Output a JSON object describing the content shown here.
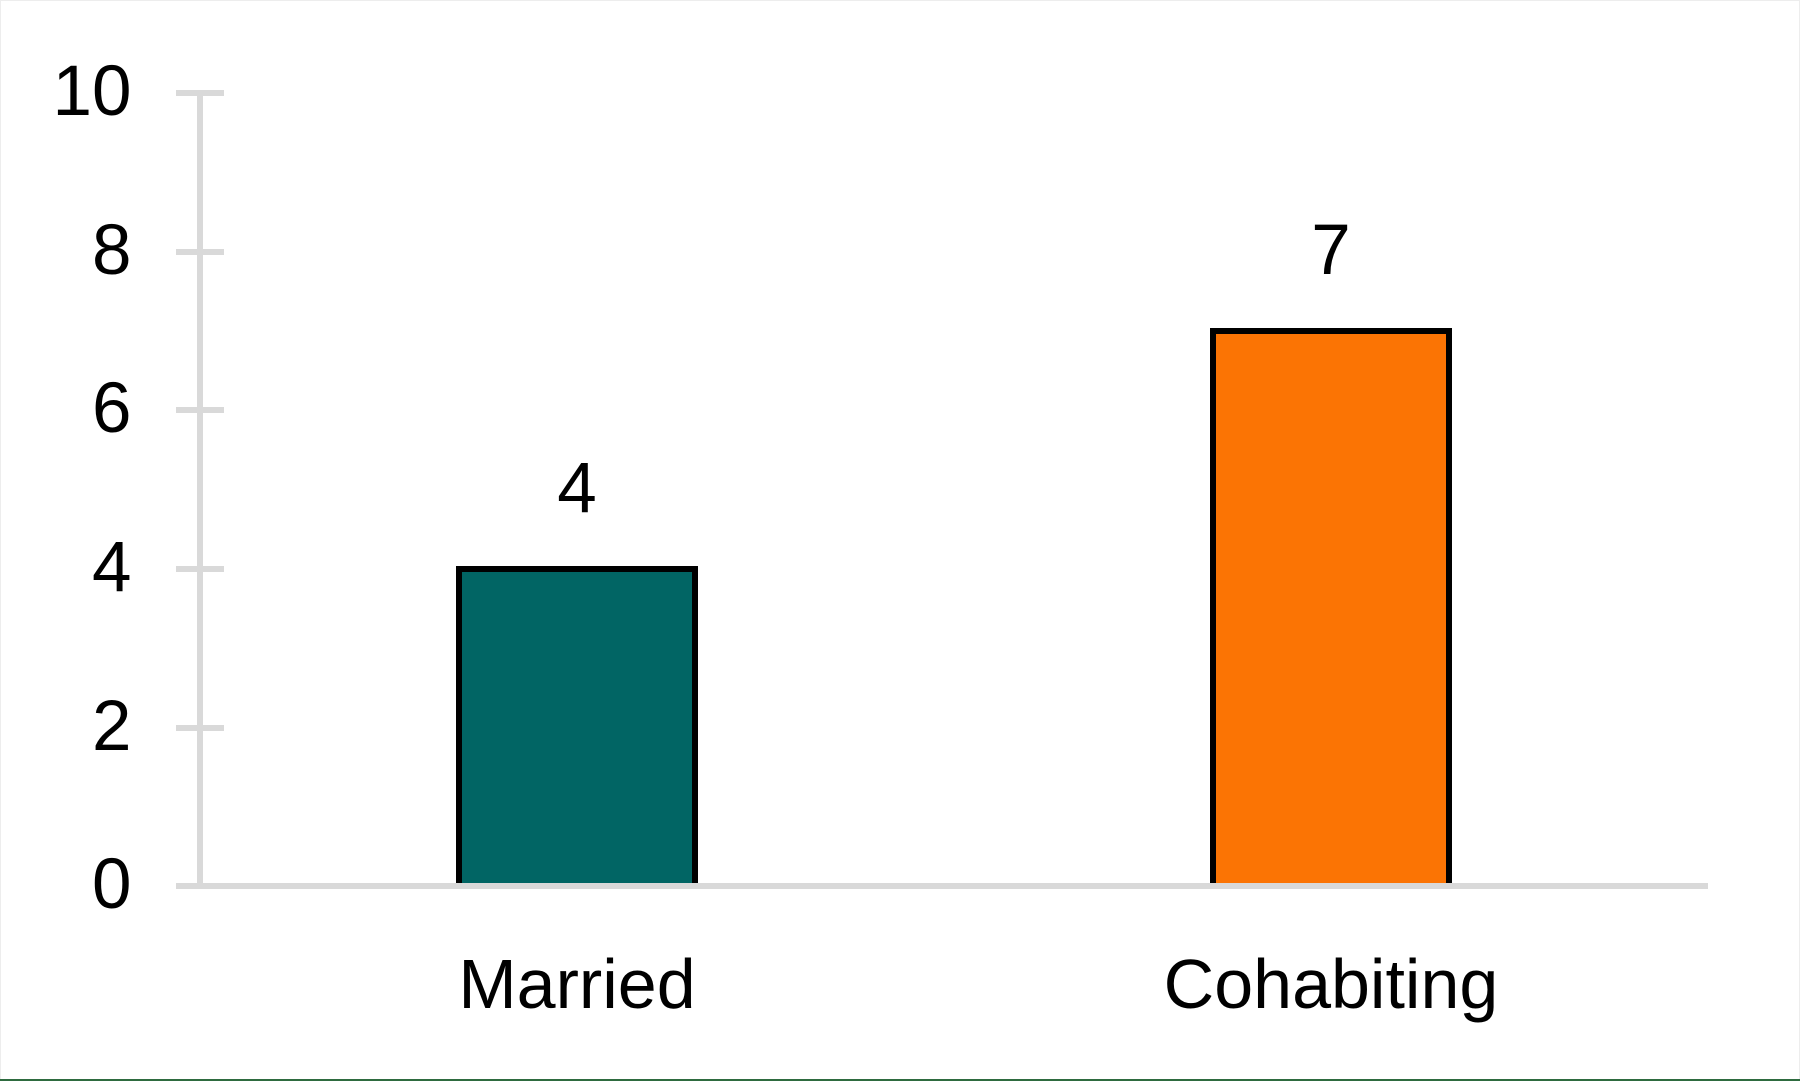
{
  "chart_data": {
    "type": "bar",
    "title": "",
    "xlabel": "",
    "ylabel": "",
    "categories": [
      "Married",
      "Cohabiting"
    ],
    "values": [
      4,
      7
    ],
    "data_labels": [
      "4",
      "7"
    ],
    "bar_colors": [
      "#016564",
      "#fb7404"
    ],
    "bar_outline_color": "#000000",
    "ylim": [
      0,
      10
    ],
    "yticks": [
      0,
      2,
      4,
      6,
      8,
      10
    ],
    "grid": "off",
    "legend": "none",
    "axis_color": "#d9d9d9",
    "text_color": "#000000"
  },
  "page": {
    "background_color": "#ffffff",
    "bottom_strip_color": "#2e6b3f"
  }
}
